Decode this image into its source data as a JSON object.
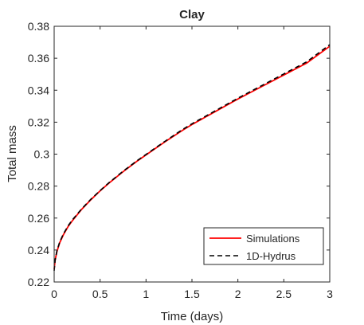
{
  "chart_data": {
    "type": "line",
    "title": "Clay",
    "xlabel": "Time (days)",
    "ylabel": "Total mass",
    "xlim": [
      0,
      3
    ],
    "ylim": [
      0.22,
      0.38
    ],
    "xticks": [
      0,
      0.5,
      1,
      1.5,
      2,
      2.5,
      3
    ],
    "xtick_labels": [
      "0",
      "0.5",
      "1",
      "1.5",
      "2",
      "2.5",
      "3"
    ],
    "yticks": [
      0.22,
      0.24,
      0.26,
      0.28,
      0.3,
      0.32,
      0.34,
      0.36,
      0.38
    ],
    "ytick_labels": [
      "0.22",
      "0.24",
      "0.26",
      "0.28",
      "0.3",
      "0.32",
      "0.34",
      "0.36",
      "0.38"
    ],
    "grid": false,
    "legend_position": "bottom-right",
    "series": [
      {
        "name": "Simulations",
        "color": "#ff0000",
        "style": "solid",
        "x": [
          0,
          0.01,
          0.03,
          0.06,
          0.1,
          0.15,
          0.2,
          0.3,
          0.4,
          0.5,
          0.6,
          0.75,
          0.9,
          1.0,
          1.2,
          1.4,
          1.5,
          1.75,
          2.0,
          2.25,
          2.5,
          2.75,
          3.0
        ],
        "y": [
          0.228,
          0.2335,
          0.239,
          0.2445,
          0.2495,
          0.2545,
          0.2585,
          0.2655,
          0.2715,
          0.277,
          0.282,
          0.289,
          0.2955,
          0.2995,
          0.3075,
          0.315,
          0.3185,
          0.3265,
          0.3345,
          0.342,
          0.3495,
          0.357,
          0.3675
        ]
      },
      {
        "name": "1D-Hydrus",
        "color": "#000000",
        "style": "dashed",
        "x": [
          0,
          0.01,
          0.03,
          0.06,
          0.1,
          0.15,
          0.2,
          0.3,
          0.4,
          0.5,
          0.6,
          0.75,
          0.9,
          1.0,
          1.2,
          1.4,
          1.5,
          1.75,
          2.0,
          2.25,
          2.5,
          2.75,
          3.0
        ],
        "y": [
          0.227,
          0.2335,
          0.2395,
          0.245,
          0.25,
          0.255,
          0.259,
          0.2658,
          0.2718,
          0.2772,
          0.2823,
          0.2893,
          0.2958,
          0.2998,
          0.3078,
          0.3155,
          0.319,
          0.327,
          0.335,
          0.3426,
          0.3502,
          0.3578,
          0.3685
        ]
      }
    ]
  }
}
